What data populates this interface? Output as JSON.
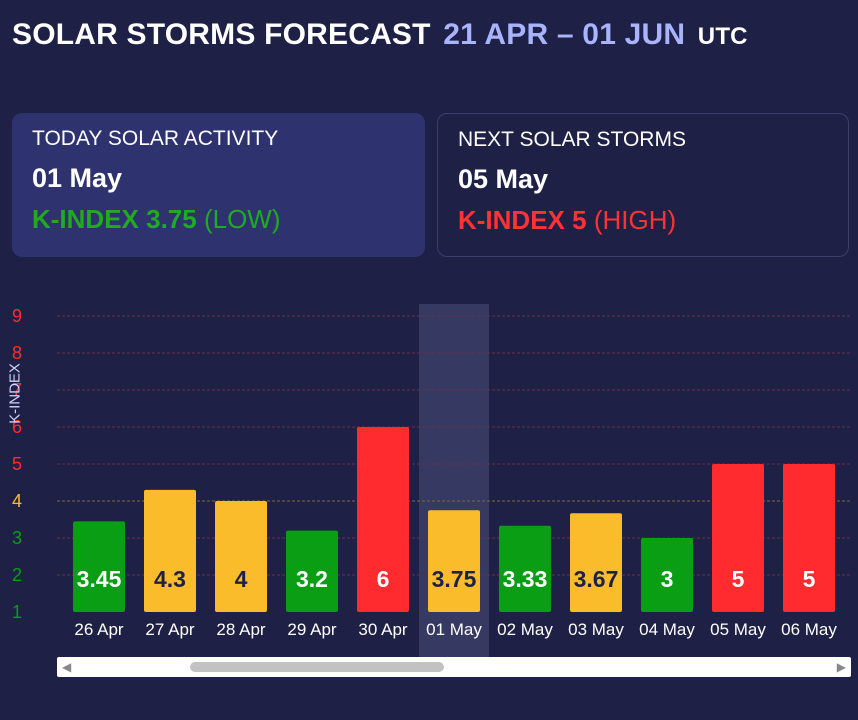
{
  "header": {
    "title": "SOLAR STORMS FORECAST",
    "range": "21 APR – 01 JUN",
    "timezone": "UTC"
  },
  "today": {
    "label": "TODAY SOLAR ACTIVITY",
    "date": "01 May",
    "kindex_text": "K-INDEX 3.75",
    "level": "(LOW)",
    "color": "#1faa1f"
  },
  "next": {
    "label": "NEXT SOLAR STORMS",
    "date": "05 May",
    "kindex_text": "K-INDEX 5",
    "level": "(HIGH)",
    "color": "#ff3333"
  },
  "chart_data": {
    "type": "bar",
    "ylabel": "K-INDEX",
    "ylim": [
      1,
      9
    ],
    "yticks": [
      "1",
      "2",
      "3",
      "4",
      "5",
      "6",
      "7",
      "8",
      "9"
    ],
    "grid": true,
    "highlight_category": "01 May",
    "categories": [
      "26 Apr",
      "27 Apr",
      "28 Apr",
      "29 Apr",
      "30 Apr",
      "01 May",
      "02 May",
      "03 May",
      "04 May",
      "05 May",
      "06 May"
    ],
    "values": [
      3.45,
      4.3,
      4,
      3.2,
      6,
      3.75,
      3.33,
      3.67,
      3,
      5,
      5
    ],
    "labels": [
      "3.45",
      "4.3",
      "4",
      "3.2",
      "6",
      "3.75",
      "3.33",
      "3.67",
      "3",
      "5",
      "5"
    ],
    "colors": {
      "low": "#0a9e14",
      "moderate": "#fbbc2c",
      "high": "#ff2b2e"
    }
  }
}
